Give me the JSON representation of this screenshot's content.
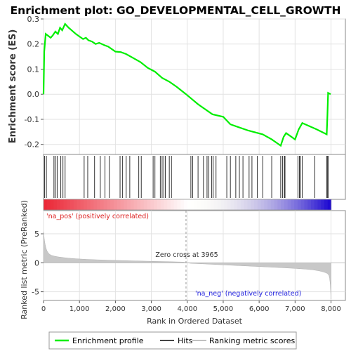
{
  "chart_data": {
    "type": "line",
    "title": "Enrichment plot: GO_DEVELOPMENTAL_CELL_GROWTH",
    "panels": {
      "enrichment": {
        "ylabel": "Enrichment score (ES)",
        "ylim": [
          -0.24,
          0.3
        ],
        "yticks": [
          "0.3",
          "0.2",
          "0.1",
          "0.0",
          "-0.1",
          "-0.2"
        ],
        "ytick_values": [
          0.3,
          0.2,
          0.1,
          0.0,
          -0.1,
          -0.2
        ],
        "grid": true,
        "series_name": "Enrichment profile",
        "color": "#00ee00",
        "points": [
          [
            0,
            0.0
          ],
          [
            20,
            0.17
          ],
          [
            60,
            0.24
          ],
          [
            200,
            0.225
          ],
          [
            260,
            0.235
          ],
          [
            330,
            0.25
          ],
          [
            400,
            0.24
          ],
          [
            460,
            0.265
          ],
          [
            520,
            0.255
          ],
          [
            600,
            0.28
          ],
          [
            700,
            0.265
          ],
          [
            900,
            0.24
          ],
          [
            1100,
            0.22
          ],
          [
            1180,
            0.225
          ],
          [
            1250,
            0.215
          ],
          [
            1350,
            0.21
          ],
          [
            1450,
            0.2
          ],
          [
            1550,
            0.205
          ],
          [
            1700,
            0.195
          ],
          [
            1800,
            0.19
          ],
          [
            2000,
            0.17
          ],
          [
            2150,
            0.168
          ],
          [
            2300,
            0.16
          ],
          [
            2550,
            0.14
          ],
          [
            2700,
            0.128
          ],
          [
            2900,
            0.105
          ],
          [
            3100,
            0.09
          ],
          [
            3300,
            0.065
          ],
          [
            3500,
            0.05
          ],
          [
            3700,
            0.03
          ],
          [
            3965,
            0.0
          ],
          [
            4300,
            -0.04
          ],
          [
            4700,
            -0.08
          ],
          [
            5000,
            -0.09
          ],
          [
            5200,
            -0.12
          ],
          [
            5400,
            -0.13
          ],
          [
            5700,
            -0.145
          ],
          [
            6100,
            -0.16
          ],
          [
            6350,
            -0.18
          ],
          [
            6500,
            -0.195
          ],
          [
            6600,
            -0.205
          ],
          [
            6680,
            -0.17
          ],
          [
            6750,
            -0.155
          ],
          [
            6850,
            -0.165
          ],
          [
            7000,
            -0.18
          ],
          [
            7100,
            -0.14
          ],
          [
            7200,
            -0.115
          ],
          [
            7600,
            -0.14
          ],
          [
            7880,
            -0.16
          ],
          [
            7900,
            -0.085
          ],
          [
            7920,
            0.005
          ],
          [
            7990,
            0.0
          ]
        ]
      },
      "hits": {
        "series_name": "Hits",
        "positions": [
          30,
          80,
          290,
          330,
          380,
          480,
          540,
          600,
          1130,
          1230,
          1420,
          1580,
          1710,
          1830,
          2130,
          2200,
          2300,
          2400,
          2650,
          2720,
          3050,
          3100,
          3250,
          3300,
          3350,
          3390,
          3500,
          3560,
          4100,
          4150,
          4300,
          4450,
          4550,
          4600,
          4680,
          4720,
          4800,
          5100,
          5200,
          5350,
          5450,
          5550,
          5720,
          5800,
          5950,
          6100,
          6350,
          6600,
          6650,
          6700,
          6720,
          7080,
          7120,
          7150,
          7200,
          7550,
          7880,
          7900,
          7920
        ]
      },
      "ranking": {
        "ylabel": "Ranked list metric (PreRanked)",
        "xlabel": "Rank in Ordered Dataset",
        "ylim": [
          -6.5,
          9
        ],
        "yticks": [
          "5",
          "0",
          "-5"
        ],
        "ytick_values": [
          5,
          0,
          -5
        ],
        "xticks": [
          "0",
          "1,000",
          "2,000",
          "3,000",
          "4,000",
          "5,000",
          "6,000",
          "7,000",
          "8,000"
        ],
        "xtick_values": [
          0,
          1000,
          2000,
          3000,
          4000,
          5000,
          6000,
          7000,
          8000
        ],
        "xlim": [
          0,
          8400
        ],
        "n_genes": 8000,
        "zero_cross_rank": 3965,
        "zero_cross_label": "Zero cross at 3965",
        "pos_label": "'na_pos' (positively correlated)",
        "neg_label": "'na_neg' (negatively correlated)",
        "series_name": "Ranking metric scores"
      }
    },
    "legend": {
      "placement": "bottom",
      "entries": [
        "Enrichment profile",
        "Hits",
        "Ranking metric scores"
      ]
    }
  }
}
